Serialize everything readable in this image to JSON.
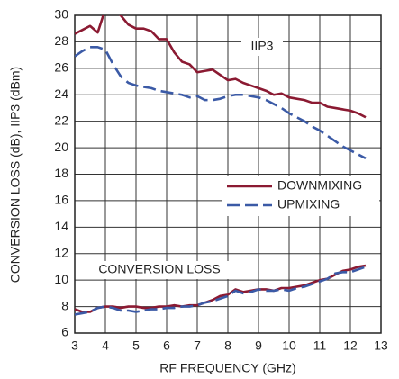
{
  "chart_data": {
    "type": "line",
    "xlabel": "RF FREQUENCY (GHz)",
    "ylabel": "CONVERSION LOSS (dB), IIP3 (dBm)",
    "annotations": [
      "IIP3",
      "CONVERSION LOSS"
    ],
    "x": [
      3,
      3.25,
      3.5,
      3.75,
      4,
      4.25,
      4.5,
      4.75,
      5,
      5.25,
      5.5,
      5.75,
      6,
      6.25,
      6.5,
      6.75,
      7,
      7.25,
      7.5,
      7.75,
      8,
      8.25,
      8.5,
      8.75,
      9,
      9.25,
      9.5,
      9.75,
      10,
      10.25,
      10.5,
      10.75,
      11,
      11.25,
      11.5,
      11.75,
      12,
      12.25,
      12.5
    ],
    "series": [
      {
        "name": "DOWNMIXING",
        "color": "#8b1a32",
        "dashed": false,
        "values": [
          28.6,
          28.9,
          29.2,
          28.7,
          30.5,
          30.5,
          30,
          29.3,
          29,
          29,
          28.8,
          28.2,
          28.2,
          27.2,
          26.5,
          26.3,
          25.7,
          25.8,
          25.9,
          25.5,
          25.1,
          25.2,
          24.9,
          24.7,
          24.5,
          24.3,
          24,
          24.1,
          23.8,
          23.7,
          23.6,
          23.4,
          23.4,
          23.1,
          23,
          22.9,
          22.8,
          22.6,
          22.3
        ],
        "loss_values": [
          7.8,
          7.6,
          7.6,
          7.9,
          8,
          8,
          7.9,
          8,
          8,
          7.9,
          7.9,
          8,
          8,
          8.1,
          8,
          8.1,
          8.1,
          8.3,
          8.5,
          8.8,
          8.9,
          9.3,
          9.1,
          9.2,
          9.3,
          9.3,
          9.2,
          9.4,
          9.4,
          9.5,
          9.6,
          9.8,
          10,
          10.1,
          10.4,
          10.7,
          10.8,
          11,
          11.1
        ]
      },
      {
        "name": "UPMIXING",
        "color": "#3b5aa6",
        "dashed": true,
        "values": [
          26.9,
          27.3,
          27.6,
          27.6,
          27.4,
          26.3,
          25.4,
          24.9,
          24.7,
          24.6,
          24.5,
          24.3,
          24.2,
          24.1,
          24,
          23.8,
          23.9,
          23.6,
          23.6,
          23.7,
          23.9,
          24,
          24,
          23.9,
          23.8,
          23.6,
          23.3,
          23,
          22.6,
          22.3,
          22,
          21.6,
          21.3,
          20.9,
          20.5,
          20.1,
          19.8,
          19.5,
          19.2
        ],
        "loss_values": [
          7.4,
          7.5,
          7.6,
          7.9,
          8,
          7.9,
          7.7,
          7.7,
          7.6,
          7.7,
          7.8,
          7.8,
          7.9,
          7.9,
          8,
          8,
          8.1,
          8.3,
          8.4,
          8.6,
          8.8,
          9.2,
          9,
          9.1,
          9.3,
          9.2,
          9.2,
          9.3,
          9.2,
          9.4,
          9.5,
          9.7,
          9.9,
          10.1,
          10.5,
          10.6,
          10.6,
          10.8,
          11
        ]
      }
    ],
    "xlim": [
      3,
      13
    ],
    "xticks": [
      3,
      4,
      5,
      6,
      7,
      8,
      9,
      10,
      11,
      12,
      13
    ],
    "ylim": [
      6,
      30
    ],
    "yticks": [
      6,
      8,
      10,
      12,
      14,
      16,
      18,
      20,
      22,
      24,
      26,
      28,
      30
    ],
    "grid": true
  }
}
